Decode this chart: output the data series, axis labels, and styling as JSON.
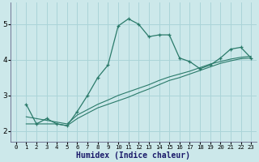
{
  "xlabel": "Humidex (Indice chaleur)",
  "bg_color": "#cce8ea",
  "grid_color": "#aad4d8",
  "line_color": "#2a7a6a",
  "xlim": [
    -0.5,
    23.5
  ],
  "ylim": [
    1.7,
    5.6
  ],
  "yticks": [
    2,
    3,
    4,
    5
  ],
  "xticks": [
    0,
    1,
    2,
    3,
    4,
    5,
    6,
    7,
    8,
    9,
    10,
    11,
    12,
    13,
    14,
    15,
    16,
    17,
    18,
    19,
    20,
    21,
    22,
    23
  ],
  "series1_x": [
    1,
    2,
    3,
    4,
    5,
    6,
    7,
    8,
    9,
    10,
    11,
    12,
    13,
    14,
    15,
    16,
    17,
    18,
    19,
    20,
    21,
    22,
    23
  ],
  "series1_y": [
    2.75,
    2.2,
    2.35,
    2.2,
    2.15,
    2.55,
    3.0,
    3.5,
    3.85,
    4.95,
    5.15,
    5.0,
    4.65,
    4.7,
    4.7,
    4.05,
    3.95,
    3.75,
    3.85,
    4.05,
    4.3,
    4.35,
    4.05
  ],
  "series2_x": [
    1,
    2,
    3,
    4,
    5,
    6,
    7,
    8,
    9,
    10,
    11,
    12,
    13,
    14,
    15,
    16,
    17,
    18,
    19,
    20,
    21,
    22,
    23
  ],
  "series2_y": [
    2.2,
    2.2,
    2.2,
    2.2,
    2.15,
    2.35,
    2.5,
    2.65,
    2.75,
    2.85,
    2.95,
    3.07,
    3.18,
    3.3,
    3.42,
    3.5,
    3.6,
    3.7,
    3.8,
    3.9,
    3.97,
    4.03,
    4.05
  ],
  "series3_x": [
    1,
    2,
    3,
    4,
    5,
    6,
    7,
    8,
    9,
    10,
    11,
    12,
    13,
    14,
    15,
    16,
    17,
    18,
    19,
    20,
    21,
    22,
    23
  ],
  "series3_y": [
    2.4,
    2.35,
    2.3,
    2.25,
    2.2,
    2.45,
    2.6,
    2.75,
    2.87,
    3.0,
    3.1,
    3.2,
    3.3,
    3.42,
    3.52,
    3.6,
    3.68,
    3.78,
    3.88,
    3.95,
    4.02,
    4.07,
    4.1
  ]
}
